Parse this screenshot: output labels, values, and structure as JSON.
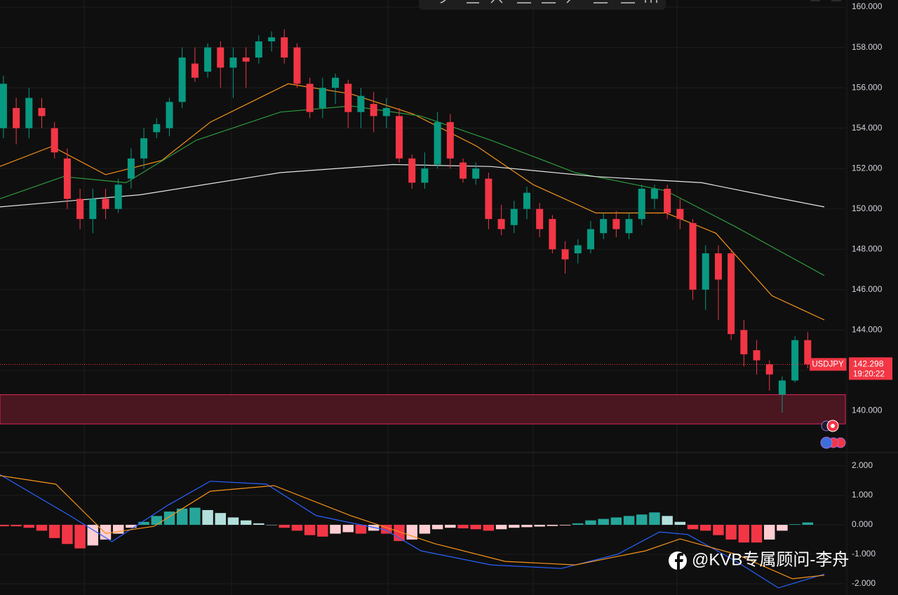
{
  "chart_data": [
    {
      "type": "candlestick",
      "symbol": "USDJPY",
      "current_price": 142.298,
      "time_label": "19:20:22",
      "xlim": [
        -0.27,
        65.95
      ],
      "ylim": [
        138,
        160.35
      ],
      "yticks": [
        {
          "value": 160,
          "label": "160.000"
        },
        {
          "value": 158,
          "label": "158.000"
        },
        {
          "value": 156,
          "label": "156.000"
        },
        {
          "value": 154,
          "label": "154.000"
        },
        {
          "value": 152,
          "label": "152.000"
        },
        {
          "value": 150,
          "label": "150.000"
        },
        {
          "value": 148,
          "label": "148.000"
        },
        {
          "value": 146,
          "label": "146.000"
        },
        {
          "value": 144,
          "label": "144.000"
        },
        {
          "value": 142,
          "label": "142.000"
        },
        {
          "value": 140,
          "label": "140.000"
        }
      ],
      "up_color": "#089981",
      "down_color": "#f23645",
      "zone": [
        139.35,
        140.8
      ],
      "open": [
        154.0,
        155,
        154,
        155,
        154,
        152.5,
        150.5,
        149.5,
        150.5,
        150,
        151.5,
        152.5,
        153.8,
        154,
        155.3,
        157.2,
        156.8,
        158,
        157,
        157.5,
        157.5,
        158.3,
        158.5,
        158,
        156.2,
        155,
        156,
        156.2,
        154.8,
        155.2,
        154.6,
        154.6,
        152.5,
        151.3,
        152.2,
        154.3,
        152.3,
        151.5,
        151.5,
        149.5,
        149.2,
        150,
        150,
        149.5,
        148,
        147.8,
        148,
        148.8,
        149.5,
        148.8,
        149.5,
        150.5,
        151,
        150,
        149.3,
        146,
        147.8,
        147.8,
        144,
        143,
        142.3,
        140.8,
        141.5,
        143.5
      ],
      "high": [
        156.6,
        155.5,
        156,
        155.5,
        154.3,
        153,
        151,
        151,
        151,
        151.5,
        153,
        154,
        154.5,
        155.5,
        158,
        158,
        158.2,
        158.3,
        158,
        158,
        158.6,
        158.8,
        158.9,
        158.2,
        156.5,
        156.5,
        156.7,
        156.4,
        156,
        155.8,
        155.5,
        155,
        152.7,
        152.8,
        154.8,
        154.7,
        152.5,
        152.3,
        151.8,
        150.2,
        150.4,
        151.1,
        150.3,
        149.7,
        148.4,
        148.5,
        149.4,
        149.8,
        149.9,
        149.8,
        151.2,
        151.2,
        151.2,
        150.5,
        149.5,
        148.2,
        148.2,
        148,
        144.5,
        143.5,
        142.5,
        141.7,
        143.7,
        143.9
      ],
      "low": [
        153.5,
        153.2,
        153.5,
        154,
        152.5,
        150,
        149,
        148.8,
        149.5,
        149.8,
        151,
        152,
        153.5,
        153.6,
        155,
        156.3,
        156.5,
        156,
        155.5,
        156,
        157.2,
        157.8,
        157.2,
        156,
        154.5,
        154.5,
        155.2,
        154,
        154,
        153.8,
        154,
        152.3,
        151,
        151,
        152,
        152,
        151.3,
        151.2,
        149,
        148.7,
        148.8,
        149.5,
        148.6,
        147.8,
        146.8,
        147.3,
        147.8,
        148.5,
        148.6,
        148.5,
        149.2,
        150,
        149.5,
        149,
        145.5,
        145,
        144.5,
        143.5,
        142.2,
        141.8,
        141,
        139.9,
        141.4,
        142.1
      ],
      "close": [
        156.2,
        154,
        155.5,
        154.6,
        152.8,
        150.5,
        149.5,
        150.5,
        150,
        151.2,
        152.5,
        153.5,
        154.2,
        155.3,
        157.5,
        156.5,
        158,
        157,
        157.5,
        157.3,
        158.3,
        158.5,
        157.5,
        156.2,
        154.8,
        156,
        156.5,
        154.8,
        155.6,
        154.6,
        155,
        152.5,
        151.3,
        152,
        154.3,
        152.5,
        151.5,
        152,
        149.5,
        149,
        150,
        150.8,
        149,
        148,
        147.5,
        148.2,
        149,
        149.5,
        149,
        149.5,
        151,
        151,
        149.8,
        149.5,
        146,
        147.8,
        146.5,
        143.8,
        142.8,
        142.5,
        141.8,
        141.5,
        143.5,
        142.3
      ],
      "series": [
        {
          "color": "#f7931a",
          "x": [
            -0.3,
            3.8,
            8.0,
            12.4,
            16.2,
            22.3,
            27.2,
            32.1,
            37.1,
            41.5,
            46.4,
            51.9,
            55.8,
            60.2,
            64.3
          ],
          "values": [
            152.1,
            153.1,
            151.7,
            152.4,
            154.3,
            156.2,
            155.7,
            154.7,
            153.1,
            151.2,
            149.8,
            149.8,
            148.8,
            145.7,
            144.5
          ]
        },
        {
          "color": "#2e9a3c",
          "x": [
            -0.3,
            4.7,
            9.6,
            15.1,
            21.7,
            27.2,
            32.7,
            38.2,
            44.8,
            51.9,
            57.4,
            64.3
          ],
          "values": [
            150.5,
            151.6,
            151.3,
            153.4,
            154.8,
            155.1,
            154.6,
            153.4,
            151.8,
            150.9,
            149.1,
            146.7
          ]
        },
        {
          "color": "#e6e6e6",
          "x": [
            -0.3,
            5.2,
            10.7,
            21.7,
            30.5,
            38.2,
            46.4,
            54.7,
            60.2,
            64.3
          ],
          "values": [
            150.1,
            150.4,
            150.7,
            151.8,
            152.2,
            152.1,
            151.6,
            151.3,
            150.6,
            150.1
          ]
        }
      ]
    },
    {
      "type": "macd",
      "xlim": [
        -0.27,
        65.95
      ],
      "ylim": [
        -2.38,
        2.45
      ],
      "yticks": [
        {
          "value": 2,
          "label": "2.000"
        },
        {
          "value": 1,
          "label": "1.000"
        },
        {
          "value": 0,
          "label": "0.000"
        },
        {
          "value": -1,
          "label": "-1.000"
        },
        {
          "value": -2,
          "label": "-2.000"
        }
      ],
      "colors": {
        "up_grow": "#26a69a",
        "up_fall": "#b2dfdb",
        "down_grow": "#f23645",
        "down_fall": "#ffcdd2"
      },
      "histogram": [
        -0.05,
        -0.05,
        -0.1,
        -0.2,
        -0.45,
        -0.65,
        -0.8,
        -0.7,
        -0.5,
        -0.3,
        -0.1,
        0.1,
        0.3,
        0.45,
        0.55,
        0.58,
        0.5,
        0.4,
        0.25,
        0.15,
        0.05,
        0,
        -0.1,
        -0.2,
        -0.35,
        -0.4,
        -0.3,
        -0.25,
        -0.3,
        -0.2,
        -0.3,
        -0.55,
        -0.5,
        -0.3,
        -0.15,
        -0.1,
        -0.12,
        -0.15,
        -0.2,
        -0.15,
        -0.1,
        -0.08,
        -0.06,
        -0.04,
        -0.02,
        0.05,
        0.15,
        0.2,
        0.25,
        0.3,
        0.35,
        0.42,
        0.3,
        0.1,
        -0.15,
        -0.2,
        -0.35,
        -0.5,
        -0.6,
        -0.6,
        -0.5,
        -0.2,
        0.02,
        0.08
      ],
      "series": [
        {
          "color": "#2962ff",
          "x": [
            -0.3,
            5.2,
            8.5,
            12.9,
            16.2,
            20.6,
            24.5,
            29.9,
            32.7,
            38.2,
            43.7,
            48.1,
            51.4,
            53.6,
            57.4,
            60.7,
            64.3
          ],
          "values": [
            1.71,
            0.31,
            -0.57,
            0.67,
            1.48,
            1.38,
            0.31,
            -0.17,
            -0.88,
            -1.36,
            -1.48,
            -1.0,
            -0.24,
            -0.33,
            -1.24,
            -2.14,
            -1.67
          ]
        },
        {
          "color": "#f7931a",
          "x": [
            -0.3,
            4.1,
            8.0,
            11.8,
            16.2,
            21.2,
            27.2,
            33.8,
            39.3,
            44.8,
            50.3,
            53.0,
            57.4,
            61.8,
            64.3
          ],
          "values": [
            1.67,
            1.38,
            -0.29,
            -0.05,
            1.14,
            1.33,
            0.31,
            -0.64,
            -1.24,
            -1.36,
            -0.88,
            -0.48,
            -1.0,
            -1.83,
            -1.71
          ]
        }
      ]
    }
  ],
  "watermark": "@KVB专属顾问-李舟"
}
